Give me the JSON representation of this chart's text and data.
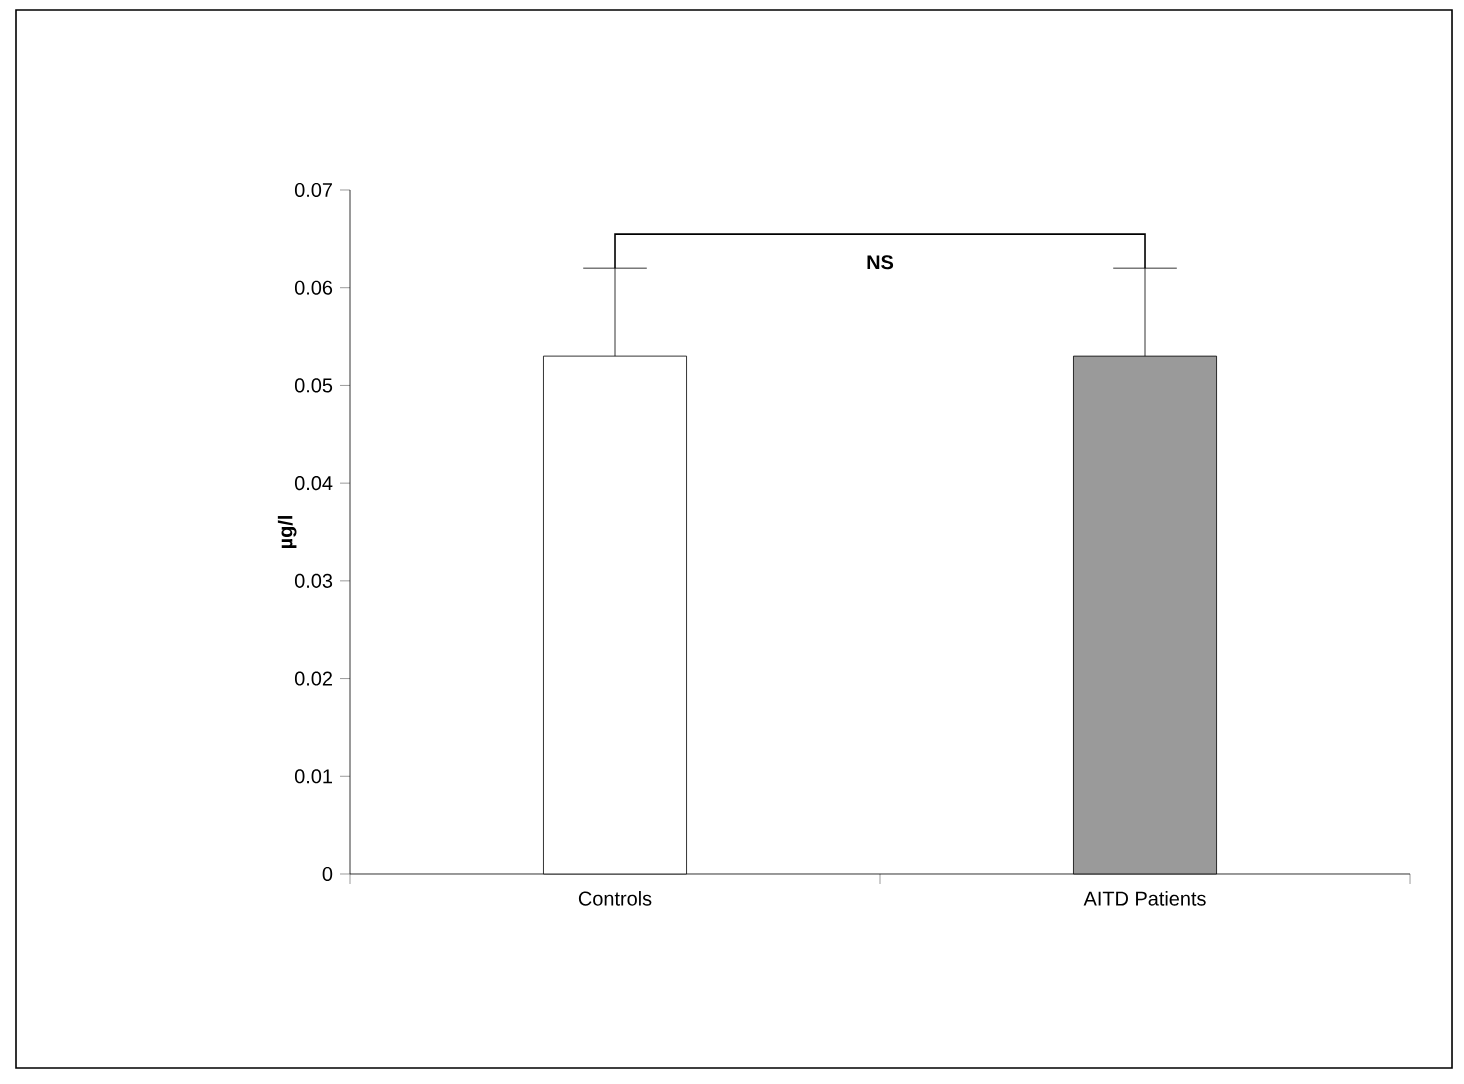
{
  "chart_data": {
    "type": "bar",
    "ylabel": "µg/l",
    "categories": [
      "Controls",
      "AITD Patients"
    ],
    "values": [
      0.053,
      0.053
    ],
    "colors": [
      "#ffffff",
      "#9a9a9a"
    ],
    "errors": [
      [
        0.053,
        0.062
      ],
      [
        0.053,
        0.062
      ]
    ],
    "ylim": [
      0,
      0.07
    ],
    "yticks": [
      0,
      0.01,
      0.02,
      0.03,
      0.04,
      0.05,
      0.06,
      0.07
    ],
    "annotations": [
      "NS"
    ]
  }
}
